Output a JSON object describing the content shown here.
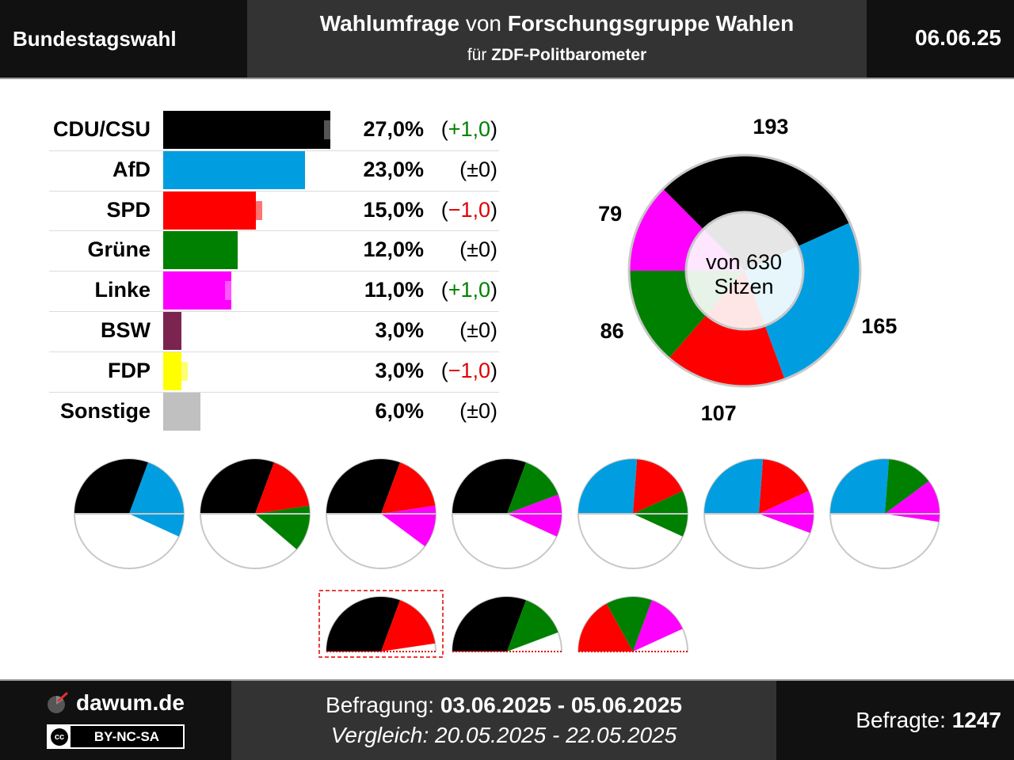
{
  "header": {
    "left_title": "Bundestagswahl",
    "title_prefix": "Wahlumfrage",
    "title_connector": "von",
    "institute": "Forschungsgruppe Wahlen",
    "subtitle_prefix": "für",
    "client": "ZDF-Politbarometer",
    "date": "06.06.25"
  },
  "chart_data": [
    {
      "type": "bar",
      "orientation": "horizontal",
      "categories": [
        "CDU/CSU",
        "AfD",
        "SPD",
        "Grüne",
        "Linke",
        "BSW",
        "FDP",
        "Sonstige"
      ],
      "series": [
        {
          "values": [
            27.0,
            23.0,
            15.0,
            12.0,
            11.0,
            3.0,
            3.0,
            6.0
          ]
        },
        {
          "values": [
            26.0,
            23.0,
            16.0,
            12.0,
            10.0,
            3.0,
            4.0,
            6.0
          ]
        }
      ],
      "value_labels": [
        "27,0%",
        "23,0%",
        "15,0%",
        "12,0%",
        "11,0%",
        "3,0%",
        "3,0%",
        "6,0%"
      ],
      "change_labels": [
        "(+1,0)",
        "(±0)",
        "(−1,0)",
        "(±0)",
        "(+1,0)",
        "(±0)",
        "(−1,0)",
        "(±0)"
      ],
      "change_signs": [
        "up",
        "none",
        "down",
        "none",
        "up",
        "none",
        "down",
        "none"
      ],
      "colors": [
        "#000000",
        "#009ee0",
        "#ff0000",
        "#008000",
        "#ff00ff",
        "#7b2450",
        "#ffff00",
        "#c0c0c0"
      ]
    },
    {
      "type": "pie",
      "categories": [
        "CDU/CSU",
        "AfD",
        "SPD",
        "Grüne",
        "Linke"
      ],
      "values": [
        193,
        165,
        107,
        86,
        79
      ],
      "value_labels": [
        "193",
        "165",
        "107",
        "86",
        "79"
      ],
      "center_text_1": "von 630",
      "center_text_2": "Sitzen",
      "total": 630
    },
    {
      "type": "pie",
      "name": "coalition_options",
      "total": 630,
      "coalitions": [
        {
          "parties": [
            "CDU/CSU",
            "AfD"
          ],
          "seats": [
            193,
            165
          ]
        },
        {
          "parties": [
            "CDU/CSU",
            "SPD",
            "Grüne"
          ],
          "seats": [
            193,
            107,
            86
          ]
        },
        {
          "parties": [
            "CDU/CSU",
            "SPD",
            "Linke"
          ],
          "seats": [
            193,
            107,
            79
          ]
        },
        {
          "parties": [
            "CDU/CSU",
            "Grüne",
            "Linke"
          ],
          "seats": [
            193,
            86,
            79
          ]
        },
        {
          "parties": [
            "AfD",
            "SPD",
            "Grüne"
          ],
          "seats": [
            165,
            107,
            86
          ]
        },
        {
          "parties": [
            "AfD",
            "SPD",
            "Linke"
          ],
          "seats": [
            165,
            107,
            79
          ]
        },
        {
          "parties": [
            "AfD",
            "Grüne",
            "Linke"
          ],
          "seats": [
            165,
            86,
            79
          ]
        }
      ],
      "half_circles": [
        {
          "parties": [
            "CDU/CSU",
            "SPD"
          ],
          "seats": [
            193,
            107
          ],
          "highlighted": true
        },
        {
          "parties": [
            "CDU/CSU",
            "Grüne"
          ],
          "seats": [
            193,
            86
          ],
          "highlighted": false
        },
        {
          "parties": [
            "SPD",
            "Grüne",
            "Linke"
          ],
          "seats": [
            107,
            86,
            79
          ],
          "highlighted": false
        }
      ]
    }
  ],
  "footer": {
    "logo_text": "dawum.de",
    "license_badge": "cc",
    "license": "BY-NC-SA",
    "survey_label": "Befragung:",
    "survey_period": "03.06.2025 - 05.06.2025",
    "compare_label": "Vergleich:",
    "compare_period": "20.05.2025 - 22.05.2025",
    "respondents_label": "Befragte:",
    "respondents": "1247"
  }
}
